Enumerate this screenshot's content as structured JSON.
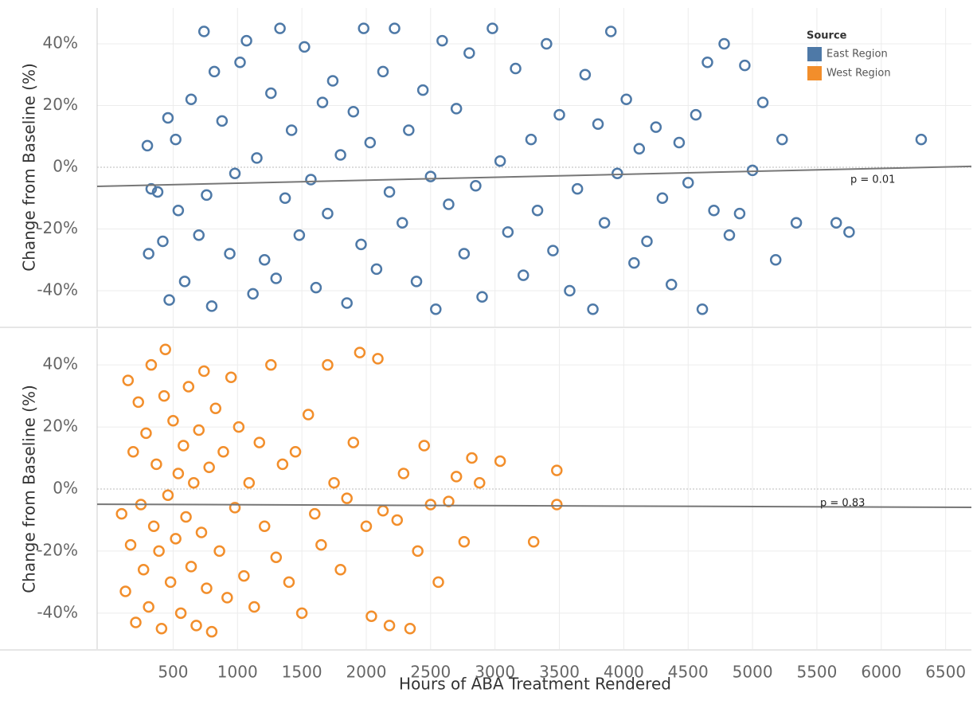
{
  "chart_data": [
    {
      "type": "scatter",
      "y_label": "Change from Baseline (%)",
      "legend_title": "Source",
      "annotation": "p = 0.01",
      "xlim": [
        -90,
        6700
      ],
      "ylim": [
        -51.6,
        51.6
      ],
      "yticks": [
        {
          "value": -40,
          "label": "-40%"
        },
        {
          "value": -20,
          "label": "-20%"
        },
        {
          "value": 0,
          "label": "0%"
        },
        {
          "value": 20,
          "label": "20%"
        },
        {
          "value": 40,
          "label": "40%"
        }
      ],
      "grid": true,
      "series": [
        {
          "name": "East Region",
          "color": "#4e79a7",
          "x": [
            300,
            310,
            330,
            380,
            420,
            460,
            470,
            520,
            540,
            590,
            640,
            700,
            740,
            760,
            800,
            820,
            880,
            940,
            980,
            1020,
            1070,
            1120,
            1150,
            1210,
            1260,
            1300,
            1330,
            1370,
            1420,
            1480,
            1520,
            1570,
            1610,
            1660,
            1700,
            1740,
            1800,
            1850,
            1900,
            1960,
            1980,
            2030,
            2080,
            2130,
            2180,
            2220,
            2280,
            2330,
            2390,
            2440,
            2500,
            2540,
            2590,
            2640,
            2700,
            2760,
            2800,
            2850,
            2900,
            2980,
            3040,
            3100,
            3160,
            3220,
            3280,
            3330,
            3400,
            3450,
            3500,
            3580,
            3640,
            3700,
            3760,
            3800,
            3850,
            3900,
            3950,
            4020,
            4080,
            4120,
            4180,
            4250,
            4300,
            4370,
            4430,
            4500,
            4560,
            4610,
            4650,
            4700,
            4780,
            4820,
            4900,
            4940,
            5000,
            5080,
            5180,
            5230,
            5340,
            5650,
            5750,
            6310
          ],
          "values": [
            7,
            -28,
            -7,
            -8,
            -24,
            16,
            -43,
            9,
            -14,
            -37,
            22,
            -22,
            44,
            -9,
            -45,
            31,
            15,
            -28,
            -2,
            34,
            41,
            -41,
            3,
            -30,
            24,
            -36,
            45,
            -10,
            12,
            -22,
            39,
            -4,
            -39,
            21,
            -15,
            28,
            4,
            -44,
            18,
            -25,
            45,
            8,
            -33,
            31,
            -8,
            45,
            -18,
            12,
            -37,
            25,
            -3,
            -46,
            41,
            -12,
            19,
            -28,
            37,
            -6,
            -42,
            45,
            2,
            -21,
            32,
            -35,
            9,
            -14,
            40,
            -27,
            17,
            -40,
            -7,
            30,
            -46,
            14,
            -18,
            44,
            -2,
            22,
            -31,
            6,
            -24,
            13,
            -10,
            -38,
            8,
            -5,
            17,
            -46,
            34,
            -14,
            40,
            -22,
            -15,
            33,
            -1,
            21,
            -30,
            9,
            -18,
            -18,
            -21,
            9
          ]
        }
      ],
      "trendline": {
        "x": [
          -90,
          6700
        ],
        "values": [
          -6.2,
          0.3
        ]
      }
    },
    {
      "type": "scatter",
      "y_label": "Change from Baseline (%)",
      "x_label": "Hours of ABA Treatment Rendered",
      "annotation": "p = 0.83",
      "xlim": [
        -90,
        6700
      ],
      "ylim": [
        -51.6,
        51.6
      ],
      "xticks": [
        500,
        1000,
        1500,
        2000,
        2500,
        3000,
        3500,
        4000,
        4500,
        5000,
        5500,
        6000,
        6500
      ],
      "yticks": [
        {
          "value": -40,
          "label": "-40%"
        },
        {
          "value": -20,
          "label": "-20%"
        },
        {
          "value": 0,
          "label": "0%"
        },
        {
          "value": 20,
          "label": "20%"
        },
        {
          "value": 40,
          "label": "40%"
        }
      ],
      "grid": true,
      "series": [
        {
          "name": "West Region",
          "color": "#f28e2b",
          "x": [
            100,
            130,
            150,
            170,
            190,
            210,
            230,
            250,
            270,
            290,
            310,
            330,
            350,
            370,
            390,
            410,
            430,
            440,
            460,
            480,
            500,
            520,
            540,
            560,
            580,
            600,
            620,
            640,
            660,
            680,
            700,
            720,
            740,
            760,
            780,
            800,
            830,
            860,
            890,
            920,
            950,
            980,
            1010,
            1050,
            1090,
            1130,
            1170,
            1210,
            1260,
            1300,
            1350,
            1400,
            1450,
            1500,
            1550,
            1600,
            1650,
            1700,
            1750,
            1800,
            1850,
            1900,
            1950,
            2000,
            2040,
            2090,
            2130,
            2180,
            2240,
            2290,
            2340,
            2400,
            2450,
            2500,
            2560,
            2640,
            2700,
            2760,
            2820,
            2880,
            3040,
            3300,
            3480,
            3480
          ],
          "values": [
            -8,
            -33,
            35,
            -18,
            12,
            -43,
            28,
            -5,
            -26,
            18,
            -38,
            40,
            -12,
            8,
            -20,
            -45,
            30,
            45,
            -2,
            -30,
            22,
            -16,
            5,
            -40,
            14,
            -9,
            33,
            -25,
            2,
            -44,
            19,
            -14,
            38,
            -32,
            7,
            -46,
            26,
            -20,
            12,
            -35,
            36,
            -6,
            20,
            -28,
            2,
            -38,
            15,
            -12,
            40,
            -22,
            8,
            -30,
            12,
            -40,
            24,
            -8,
            -18,
            40,
            2,
            -26,
            -3,
            15,
            44,
            -12,
            -41,
            42,
            -7,
            -44,
            -10,
            5,
            -45,
            -20,
            14,
            -5,
            -30,
            -4,
            4,
            -17,
            10,
            2,
            9,
            -17,
            6,
            -5
          ]
        }
      ],
      "trendline": {
        "x": [
          -90,
          6700
        ],
        "values": [
          -4.9,
          -5.9
        ]
      }
    }
  ]
}
